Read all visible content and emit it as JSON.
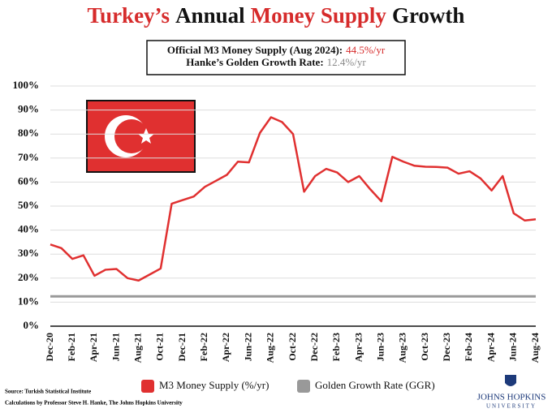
{
  "chart_data": {
    "type": "line",
    "title_parts": [
      {
        "text": "Turkey’s",
        "color": "#d62b2b"
      },
      {
        "text": "Annual",
        "color": "#111111"
      },
      {
        "text": "Money Supply",
        "color": "#d62b2b"
      },
      {
        "text": "Growth",
        "color": "#111111"
      }
    ],
    "annotations": [
      {
        "label": "Official M3 Money Supply (Aug 2024):",
        "value_text": "44.5%/yr",
        "color": "#d62b2b"
      },
      {
        "label": "Hanke’s Golden Growth Rate:",
        "value_text": "12.4%/yr",
        "color": "#888888"
      }
    ],
    "categories": [
      "Dec-20",
      null,
      "Feb-21",
      null,
      "Apr-21",
      null,
      "Jun-21",
      null,
      "Aug-21",
      null,
      "Oct-21",
      null,
      "Dec-21",
      null,
      "Feb-22",
      null,
      "Apr-22",
      null,
      "Jun-22",
      null,
      "Aug-22",
      null,
      "Oct-22",
      null,
      "Dec-22",
      null,
      "Feb-23",
      null,
      "Apr-23",
      null,
      "Jun-23",
      null,
      "Aug-23",
      null,
      "Oct-23",
      null,
      "Dec-23",
      null,
      "Feb-24",
      null,
      "Apr-24",
      null,
      "Jun-24",
      null,
      "Aug-24"
    ],
    "series": [
      {
        "name": "M3 Money Supply (%/yr)",
        "color": "#e03030",
        "values": [
          34,
          32.5,
          28,
          29.5,
          21,
          23.5,
          23.8,
          20,
          19,
          21.5,
          24,
          51,
          52.5,
          54,
          58,
          60.5,
          63,
          68.5,
          68.2,
          80.5,
          87,
          85,
          80,
          56,
          62.5,
          65.5,
          64,
          60,
          62.5,
          57,
          52,
          70.5,
          68.5,
          66.8,
          66.4,
          66.3,
          66,
          63.5,
          64.5,
          61.5,
          56.5,
          62.5,
          47,
          44,
          44.5
        ]
      }
    ],
    "reference_line": {
      "name": "Golden Growth Rate (GGR)",
      "color": "#999999",
      "value": 12.4
    },
    "ylim": [
      0,
      100
    ],
    "yticks": [
      {
        "value": 0,
        "label": "0%"
      },
      {
        "value": 10,
        "label": "10%"
      },
      {
        "value": 20,
        "label": "20%"
      },
      {
        "value": 30,
        "label": "30%"
      },
      {
        "value": 40,
        "label": "40%"
      },
      {
        "value": 50,
        "label": "50%"
      },
      {
        "value": 60,
        "label": "60%"
      },
      {
        "value": 70,
        "label": "70%"
      },
      {
        "value": 80,
        "label": "80%"
      },
      {
        "value": 90,
        "label": "90%"
      },
      {
        "value": 100,
        "label": "100%"
      }
    ],
    "grid": true,
    "source": "Source: Turkish Statistical Institute",
    "credit": "Calculations by Professor Steve H. Hanke, The Johns Hopkins University",
    "logo": {
      "name": "JOHNS HOPKINS",
      "sub": "UNIVERSITY"
    }
  }
}
